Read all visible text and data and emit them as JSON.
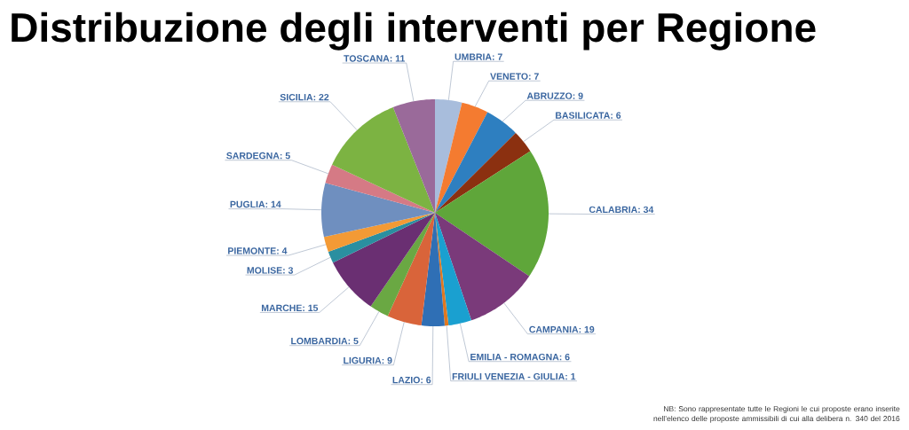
{
  "chart_data": {
    "type": "pie",
    "title": "Distribuzione degli interventi per Regione",
    "categories": [
      "UMBRIA: 7",
      "VENETO: 7",
      "ABRUZZO: 9",
      "BASILICATA: 6",
      "CALABRIA: 34",
      "CAMPANIA: 19",
      "EMILIA - ROMAGNA: 6",
      "FRIULI VENEZIA - GIULIA: 1",
      "LAZIO: 6",
      "LIGURIA: 9",
      "LOMBARDIA: 5",
      "MARCHE: 15",
      "MOLISE: 3",
      "PIEMONTE: 4",
      "PUGLIA: 14",
      "SARDEGNA: 5",
      "SICILIA: 22",
      "TOSCANA: 11"
    ],
    "values": [
      7,
      7,
      9,
      6,
      34,
      19,
      6,
      1,
      6,
      9,
      5,
      15,
      3,
      4,
      14,
      5,
      22,
      11
    ],
    "colors": [
      "#a8bddc",
      "#f47b30",
      "#2e7fc0",
      "#8b3010",
      "#5fa63a",
      "#7a3a7a",
      "#1aa0d0",
      "#e07820",
      "#2f6fb5",
      "#d9643a",
      "#6aa843",
      "#6a2f72",
      "#2a8fa0",
      "#f39a35",
      "#6f8fbf",
      "#d57a85",
      "#7cb342",
      "#9a6a9a"
    ],
    "annotations": [
      "NB: Sono rappresentate tutte le Regioni le cui proposte erano inserite nell’elenco delle proposte ammissibili di cui alla delibera n. 340 del 2016"
    ]
  }
}
